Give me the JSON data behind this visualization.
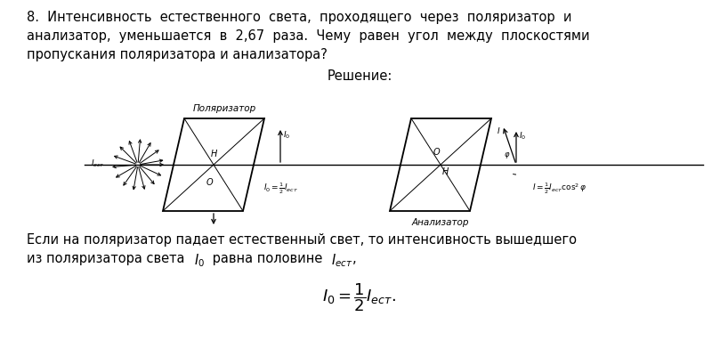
{
  "bg_color": "#ffffff",
  "line1": "8.  Интенсивность  естественного  света,  проходящего  через  поляризатор  и",
  "line2": "анализатор,  уменьшается  в  2,67  раза.  Чему  равен  угол  между  плоскостями",
  "line3": "пропускания поляризатора и анализатора?",
  "solution_label": "Решение:",
  "pol_label": "Поляризатор",
  "anal_label": "Анализатор",
  "body_line1": "Если на поляризатор падает естественный свет, то интенсивность вышедшего",
  "body_line2a": "из поляризатора света ",
  "body_line2b": " равна половине ",
  "body_I0": "$I_0$",
  "body_Iest": "$I_{ест}$",
  "body_comma": ",",
  "eq1_small": "$I_0=\\frac{1}{2}I_{ест}$",
  "eq2_small": "$I=\\frac{1}{2}I_{ест}\\cos^2\\varphi$",
  "text_color": "#000000"
}
